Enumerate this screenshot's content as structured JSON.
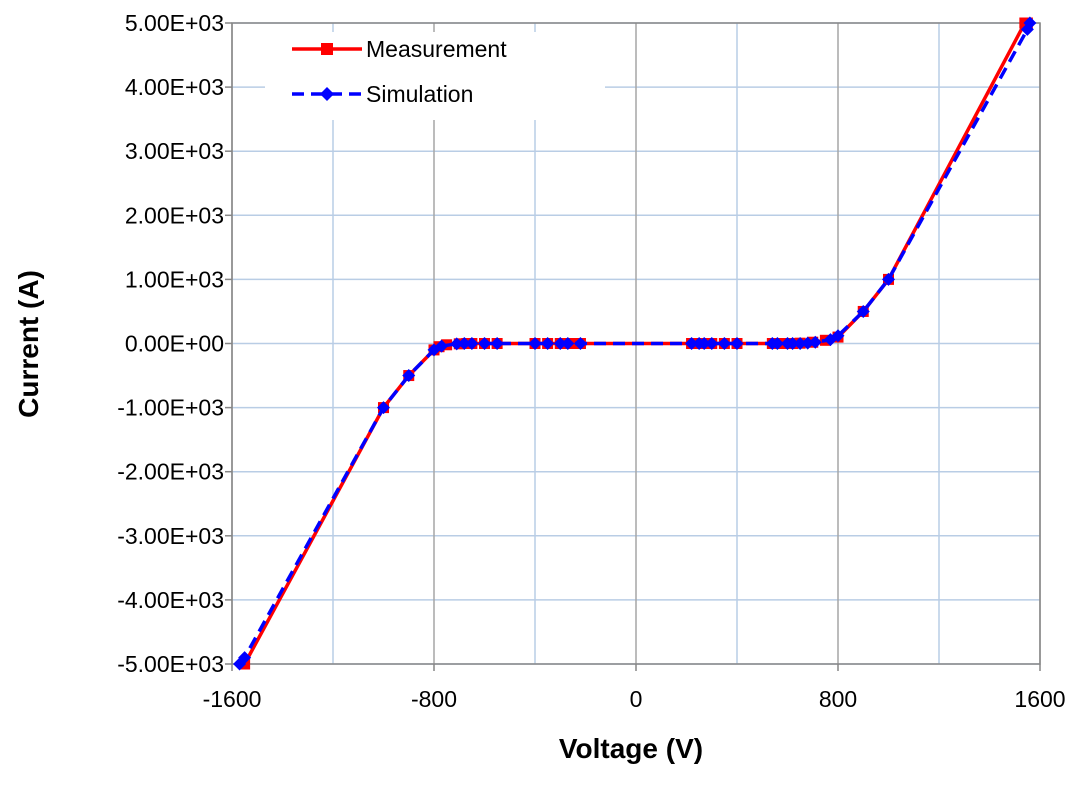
{
  "chart_data": {
    "type": "line",
    "title": "",
    "xlabel": "Voltage (V)",
    "ylabel": "Current (A)",
    "xlim": [
      -1600,
      1600
    ],
    "ylim": [
      -5000,
      5000
    ],
    "xticks": [
      "-1600",
      "-800",
      "0",
      "800",
      "1600"
    ],
    "xtick_values": [
      -1600,
      -800,
      0,
      800,
      1600
    ],
    "yticks": [
      "5.00E+03",
      "4.00E+03",
      "3.00E+03",
      "2.00E+03",
      "1.00E+03",
      "0.00E+00",
      "-1.00E+03",
      "-2.00E+03",
      "-3.00E+03",
      "-4.00E+03",
      "-5.00E+03"
    ],
    "ytick_values": [
      5000,
      4000,
      3000,
      2000,
      1000,
      0,
      -1000,
      -2000,
      -3000,
      -4000,
      -5000
    ],
    "x_minor_gridlines": [
      -1200,
      -400,
      400,
      1200
    ],
    "grid": true,
    "legend_position": "top-left",
    "series": [
      {
        "name": "Measurement",
        "color": "#ff0000",
        "line_style": "solid",
        "marker": "square",
        "x": [
          -1550,
          -1000,
          -900,
          -800,
          -780,
          -750,
          -700,
          -670,
          -650,
          -600,
          -550,
          -400,
          -350,
          -300,
          -270,
          -250,
          -220,
          220,
          250,
          270,
          300,
          350,
          400,
          540,
          560,
          600,
          620,
          650,
          700,
          750,
          800,
          900,
          1000,
          1540,
          1550
        ],
        "y": [
          -5000,
          -1000,
          -500,
          -100,
          -50,
          -20,
          -5,
          0,
          0,
          0,
          0,
          0,
          0,
          0,
          0,
          0,
          0,
          0,
          0,
          0,
          0,
          0,
          0,
          0,
          0,
          0,
          0,
          5,
          20,
          50,
          100,
          500,
          1000,
          5000,
          5000
        ]
      },
      {
        "name": "Simulation",
        "color": "#0000ff",
        "line_style": "dashed",
        "marker": "diamond",
        "x": [
          -1570,
          -1550,
          -1000,
          -900,
          -800,
          -770,
          -710,
          -680,
          -650,
          -600,
          -550,
          -400,
          -350,
          -300,
          -270,
          -220,
          220,
          250,
          270,
          300,
          350,
          400,
          540,
          560,
          600,
          620,
          650,
          680,
          710,
          770,
          800,
          900,
          1000,
          1550,
          1560
        ],
        "y": [
          -5000,
          -4900,
          -1000,
          -500,
          -100,
          -40,
          -5,
          0,
          0,
          0,
          0,
          0,
          0,
          0,
          0,
          0,
          0,
          0,
          0,
          0,
          0,
          0,
          0,
          0,
          0,
          0,
          0,
          5,
          20,
          60,
          120,
          500,
          1000,
          4900,
          5000
        ]
      }
    ]
  }
}
